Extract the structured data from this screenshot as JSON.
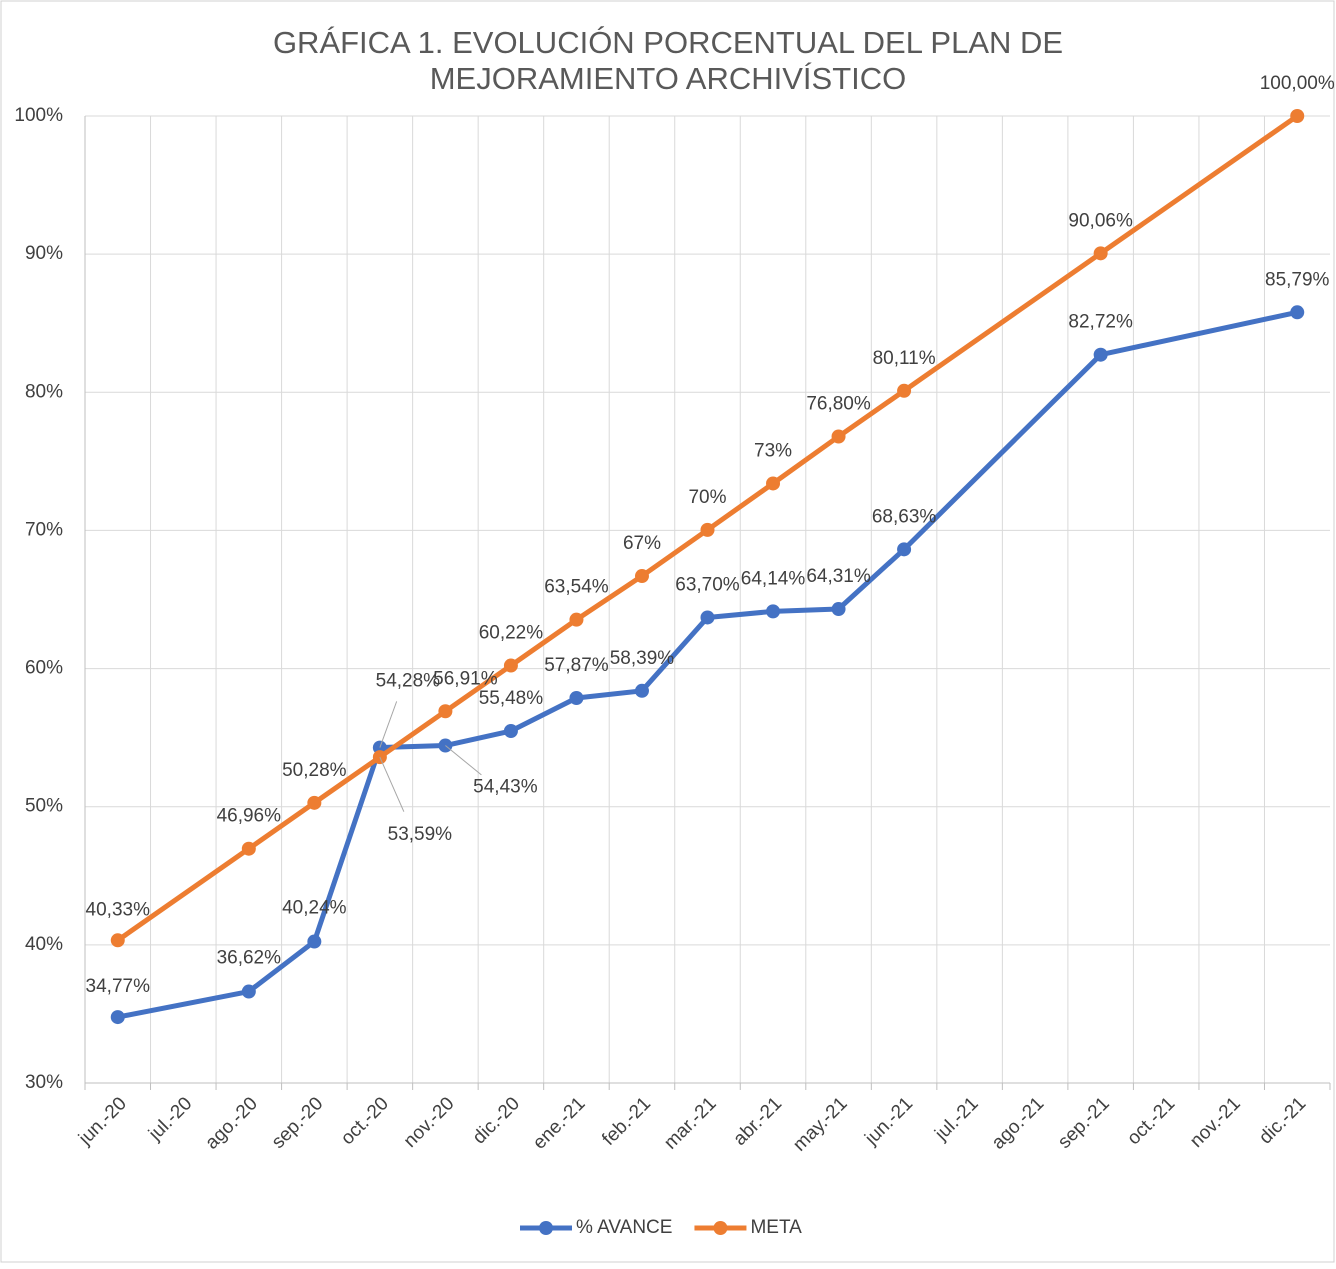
{
  "chart_data": {
    "type": "line",
    "title": [
      "GRÁFICA 1. EVOLUCIÓN PORCENTUAL DEL PLAN DE",
      "MEJORAMIENTO ARCHIVÍSTICO"
    ],
    "categories": [
      "jun.-20",
      "jul.-20",
      "ago.-20",
      "sep.-20",
      "oct.-20",
      "nov.-20",
      "dic.-20",
      "ene.-21",
      "feb.-21",
      "mar.-21",
      "abr.-21",
      "may.-21",
      "jun.-21",
      "jul.-21",
      "ago.-21",
      "sep.-21",
      "oct.-21",
      "nov.-21",
      "dic.-21"
    ],
    "series": [
      {
        "name": "% AVANCE",
        "color": "#4472c4",
        "x": [
          "jun.-20",
          "ago.-20",
          "sep.-20",
          "oct.-20",
          "nov.-20",
          "dic.-20",
          "ene.-21",
          "feb.-21",
          "mar.-21",
          "abr.-21",
          "may.-21",
          "jun.-21",
          "sep.-21",
          "dic.-21"
        ],
        "values": [
          34.77,
          36.62,
          40.24,
          54.28,
          54.43,
          55.48,
          57.87,
          58.39,
          63.7,
          64.14,
          64.31,
          68.63,
          82.72,
          85.79
        ],
        "value_labels": [
          "34,77%",
          "36,62%",
          "40,24%",
          "54,28%",
          "54,43%",
          "55,48%",
          "57,87%",
          "58,39%",
          "63,70%",
          "64,14%",
          "64,31%",
          "68,63%",
          "82,72%",
          "85,79%"
        ]
      },
      {
        "name": "META",
        "color": "#ed7d31",
        "x": [
          "jun.-20",
          "ago.-20",
          "sep.-20",
          "oct.-20",
          "nov.-20",
          "dic.-20",
          "ene.-21",
          "feb.-21",
          "mar.-21",
          "abr.-21",
          "may.-21",
          "jun.-21",
          "sep.-21",
          "dic.-21"
        ],
        "values": [
          40.33,
          46.96,
          50.28,
          53.59,
          56.91,
          60.22,
          63.54,
          66.7,
          70.04,
          73.4,
          76.8,
          80.11,
          90.06,
          100.0
        ],
        "value_labels": [
          "40,33%",
          "46,96%",
          "50,28%",
          "53,59%",
          "56,91%",
          "60,22%",
          "63,54%",
          "67%",
          "70%",
          "73%",
          "76,80%",
          "80,11%",
          "90,06%",
          "100,00%"
        ]
      }
    ],
    "ylim": [
      30,
      100
    ],
    "yticks": [
      {
        "value": 30,
        "label": "30%"
      },
      {
        "value": 40,
        "label": "40%"
      },
      {
        "value": 50,
        "label": "50%"
      },
      {
        "value": 60,
        "label": "60%"
      },
      {
        "value": 70,
        "label": "70%"
      },
      {
        "value": 80,
        "label": "80%"
      },
      {
        "value": 90,
        "label": "90%"
      },
      {
        "value": 100,
        "label": "100%"
      }
    ],
    "grid": true,
    "legend": "bottom"
  }
}
